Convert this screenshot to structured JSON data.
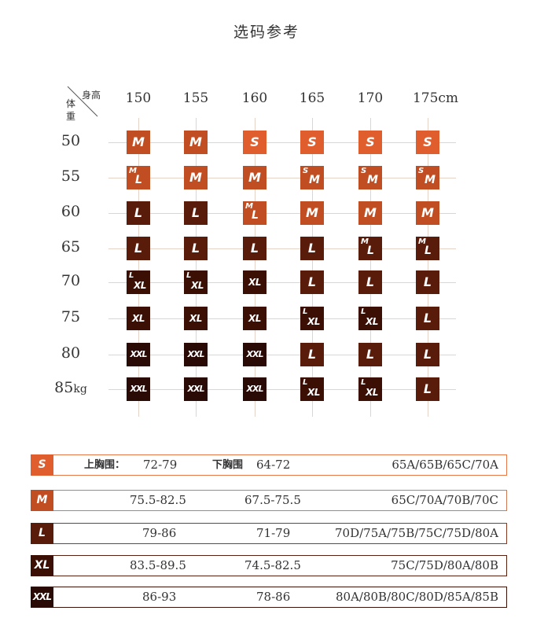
{
  "title": "选码参考",
  "corner": {
    "height_label": "身高",
    "weight_label": "体重"
  },
  "heights": [
    "150",
    "155",
    "160",
    "165",
    "170",
    "175cm"
  ],
  "weights": [
    {
      "value": "50",
      "unit": ""
    },
    {
      "value": "55",
      "unit": ""
    },
    {
      "value": "60",
      "unit": ""
    },
    {
      "value": "65",
      "unit": ""
    },
    {
      "value": "70",
      "unit": ""
    },
    {
      "value": "75",
      "unit": ""
    },
    {
      "value": "80",
      "unit": ""
    },
    {
      "value": "85",
      "unit": "kg"
    }
  ],
  "grid": [
    [
      {
        "t": "M",
        "c": "M"
      },
      {
        "t": "M",
        "c": "M"
      },
      {
        "t": "S",
        "c": "S"
      },
      {
        "t": "S",
        "c": "S"
      },
      {
        "t": "S",
        "c": "S"
      },
      {
        "t": "S",
        "c": "S"
      }
    ],
    [
      {
        "t": "M",
        "b": "L",
        "c": "M"
      },
      {
        "t": "M",
        "c": "M"
      },
      {
        "t": "M",
        "c": "M"
      },
      {
        "t": "S",
        "b": "M",
        "c": "M"
      },
      {
        "t": "S",
        "b": "M",
        "c": "M"
      },
      {
        "t": "S",
        "b": "M",
        "c": "M"
      }
    ],
    [
      {
        "t": "L",
        "c": "L"
      },
      {
        "t": "L",
        "c": "L"
      },
      {
        "t": "M",
        "b": "L",
        "c": "M"
      },
      {
        "t": "M",
        "c": "M"
      },
      {
        "t": "M",
        "c": "M"
      },
      {
        "t": "M",
        "c": "M"
      }
    ],
    [
      {
        "t": "L",
        "c": "L"
      },
      {
        "t": "L",
        "c": "L"
      },
      {
        "t": "L",
        "c": "L"
      },
      {
        "t": "L",
        "c": "L"
      },
      {
        "t": "M",
        "b": "L",
        "c": "L"
      },
      {
        "t": "M",
        "b": "L",
        "c": "L"
      }
    ],
    [
      {
        "t": "L",
        "b": "XL",
        "c": "XL"
      },
      {
        "t": "L",
        "b": "XL",
        "c": "XL"
      },
      {
        "t": "XL",
        "c": "XL"
      },
      {
        "t": "L",
        "c": "L"
      },
      {
        "t": "L",
        "c": "L"
      },
      {
        "t": "L",
        "c": "L"
      }
    ],
    [
      {
        "t": "XL",
        "c": "XL"
      },
      {
        "t": "XL",
        "c": "XL"
      },
      {
        "t": "XL",
        "c": "XL"
      },
      {
        "t": "L",
        "b": "XL",
        "c": "XL"
      },
      {
        "t": "L",
        "b": "XL",
        "c": "XL"
      },
      {
        "t": "L",
        "c": "L"
      }
    ],
    [
      {
        "t": "XXL",
        "c": "XXL"
      },
      {
        "t": "XXL",
        "c": "XXL"
      },
      {
        "t": "XXL",
        "c": "XXL"
      },
      {
        "t": "L",
        "c": "L"
      },
      {
        "t": "L",
        "c": "L"
      },
      {
        "t": "L",
        "c": "L"
      }
    ],
    [
      {
        "t": "XXL",
        "c": "XXL"
      },
      {
        "t": "XXL",
        "c": "XXL"
      },
      {
        "t": "XXL",
        "c": "XXL"
      },
      {
        "t": "L",
        "b": "XL",
        "c": "XL"
      },
      {
        "t": "L",
        "b": "XL",
        "c": "XL"
      },
      {
        "t": "L",
        "c": "L"
      }
    ]
  ],
  "colors": {
    "S": "#e05e2e",
    "M": "#c04e22",
    "L": "#5a1c0a",
    "XL": "#3c0f05",
    "XXL": "#2a0a04",
    "gridline": "#e6d3c8"
  },
  "sizes": [
    {
      "size": "S",
      "upper_label": "上胸围：",
      "upper": "72-79",
      "lower_label": "下胸围",
      "lower": "64-72",
      "cups": "65A/65B/65C/70A",
      "border": "#e6784a"
    },
    {
      "size": "M",
      "upper_label": "",
      "upper": "75.5-82.5",
      "lower_label": "",
      "lower": "67.5-75.5",
      "cups": "65C/70A/70B/70C",
      "border": "#d07a55"
    },
    {
      "size": "L",
      "upper_label": "",
      "upper": "79-86",
      "lower_label": "",
      "lower": "71-79",
      "cups": "70D/75A/75B/75C/75D/80A",
      "border": "#8a3a20"
    },
    {
      "size": "XL",
      "upper_label": "",
      "upper": "83.5-89.5",
      "lower_label": "",
      "lower": "74.5-82.5",
      "cups": "75C/75D/80A/80B",
      "border": "#5a2010"
    },
    {
      "size": "XXL",
      "upper_label": "",
      "upper": "86-93",
      "lower_label": "",
      "lower": "78-86",
      "cups": "80A/80B/80C/80D/85A/85B",
      "border": "#3a1208"
    }
  ]
}
